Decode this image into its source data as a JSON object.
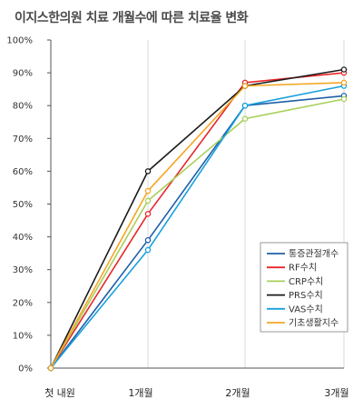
{
  "chart_data": {
    "type": "line",
    "title": "이지스한의원 치료 개월수에 따른 치료율 변화",
    "xlabel": "",
    "ylabel": "",
    "categories": [
      "첫 내원",
      "1개월",
      "2개월",
      "3개월"
    ],
    "ylim": [
      0,
      100
    ],
    "yticks": [
      0,
      10,
      20,
      30,
      40,
      50,
      60,
      70,
      80,
      90,
      100
    ],
    "ytick_labels": [
      "0%",
      "10%",
      "20%",
      "30%",
      "40%",
      "50%",
      "60%",
      "70%",
      "80%",
      "90%",
      "100%"
    ],
    "grid": "vertical",
    "legend_position": "bottom-right",
    "series": [
      {
        "name": "통증관절개수",
        "color": "#1f5fa8",
        "values": [
          0,
          39,
          80,
          83
        ]
      },
      {
        "name": "RF수치",
        "color": "#e8262a",
        "values": [
          0,
          47,
          87,
          90
        ]
      },
      {
        "name": "CRP수치",
        "color": "#a8cf5a",
        "values": [
          0,
          51,
          76,
          82
        ]
      },
      {
        "name": "PRS수치",
        "color": "#1a1a1a",
        "values": [
          0,
          60,
          86,
          91
        ]
      },
      {
        "name": "VAS수치",
        "color": "#1aa0dc",
        "values": [
          0,
          36,
          80,
          86
        ]
      },
      {
        "name": "기초생활지수",
        "color": "#f5a623",
        "values": [
          0,
          54,
          86,
          87
        ]
      }
    ]
  }
}
